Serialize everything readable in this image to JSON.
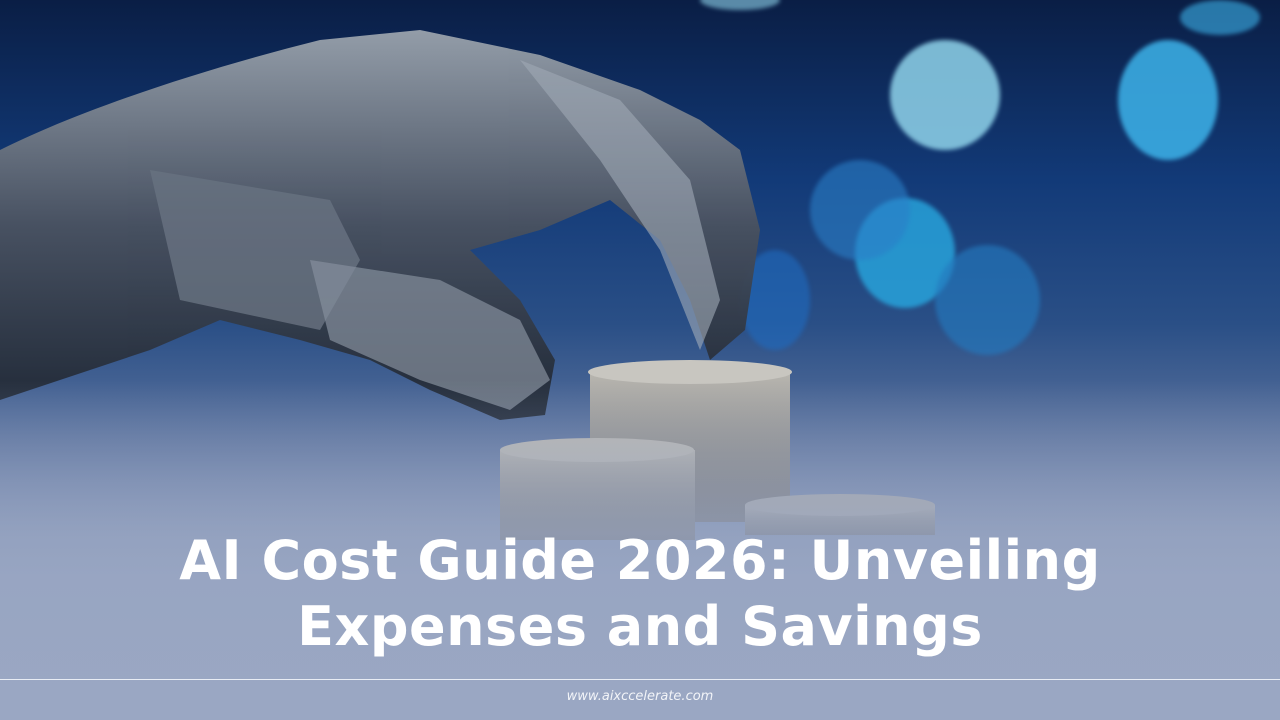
{
  "title": {
    "line1": "AI Cost Guide 2026: Unveiling",
    "line2": "Expenses and Savings"
  },
  "footer": {
    "url": "www.aixccelerate.com"
  },
  "colors": {
    "background_top": "#0a1e45",
    "background_bottom": "#9aa7c3",
    "bokeh": "#3fb4e6",
    "text": "#ffffff"
  },
  "imagery": {
    "subject": "robot-hand-over-coin-stacks"
  }
}
